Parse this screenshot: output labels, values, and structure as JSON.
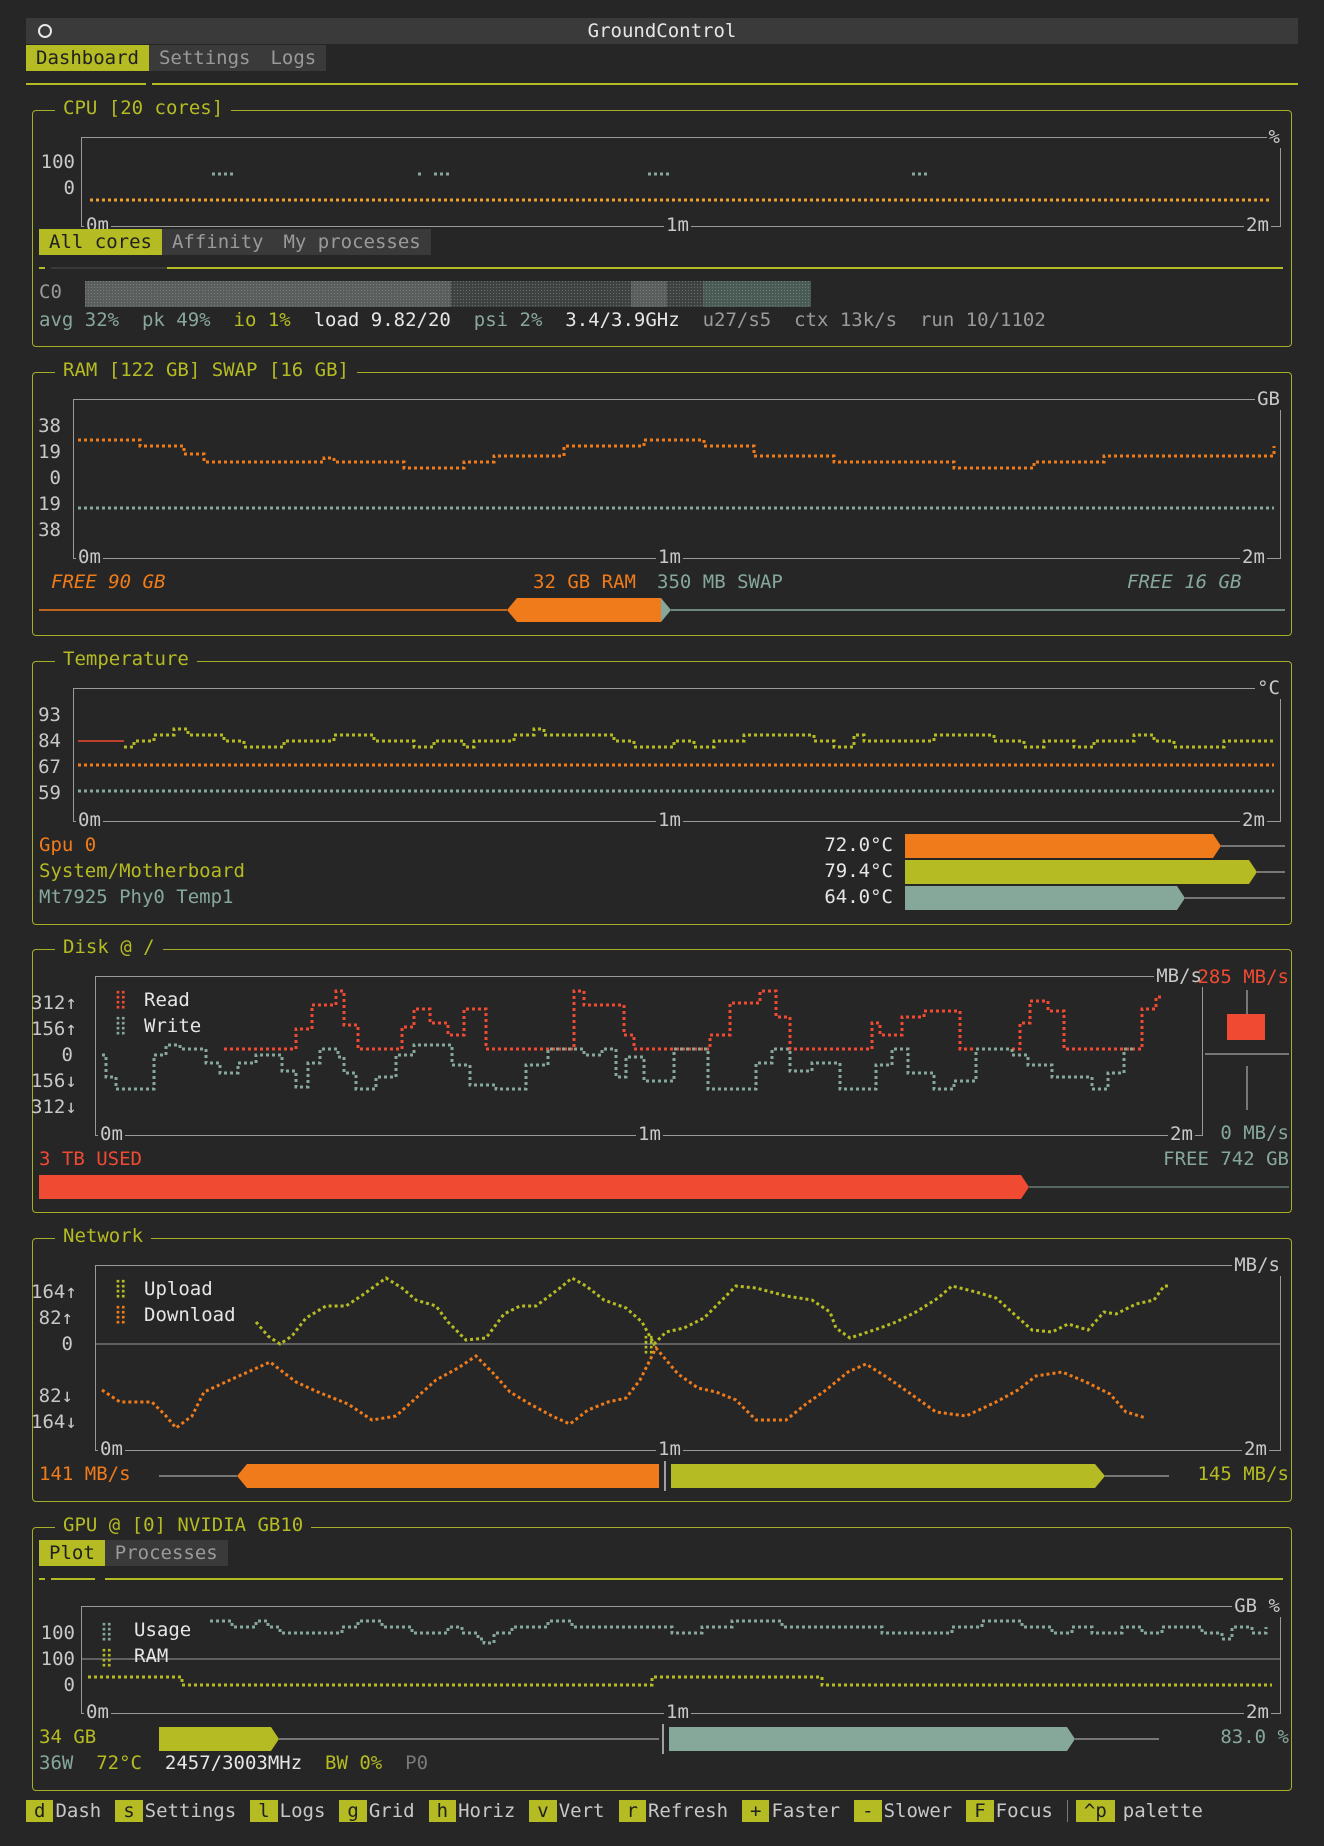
{
  "app": {
    "title": "GroundControl"
  },
  "tabs": [
    "Dashboard",
    "Settings",
    "Logs"
  ],
  "colors": {
    "olive": "#b5bb22",
    "orange": "#f07b1a",
    "red": "#f04a33",
    "teal": "#86a89b",
    "bg": "#262626"
  },
  "x_ticks": [
    "0m",
    "1m",
    "2m"
  ],
  "cpu": {
    "title": "CPU [20 cores]",
    "unit": "%",
    "y_labels": [
      "100",
      "0"
    ],
    "tabs": [
      "All cores",
      "Affinity",
      "My processes"
    ],
    "core_label": "C0",
    "stats": {
      "avg": "avg 32%",
      "pk": "pk 49%",
      "io": "io 1%",
      "load": "load 9.82/20",
      "psi": "psi 2%",
      "freq": "3.4/3.9GHz",
      "us": "u27/s5",
      "ctx": "ctx 13k/s",
      "run": "run 10/1102"
    }
  },
  "ram": {
    "title": "RAM [122 GB] SWAP [16 GB]",
    "unit": "GB",
    "y_labels": [
      "38",
      "19",
      "0",
      "19",
      "38"
    ],
    "free_ram": "FREE 90 GB",
    "used_ram": "32 GB RAM",
    "used_swap": "350 MB SWAP",
    "free_swap": "FREE 16 GB"
  },
  "temperature": {
    "title": "Temperature",
    "unit": "°C",
    "y_labels": [
      "93",
      "84",
      "67",
      "59"
    ],
    "sensors": [
      {
        "name": "Gpu 0",
        "value": "72.0°C",
        "color": "#f07b1a",
        "level": 0.72
      },
      {
        "name": "System/Motherboard",
        "value": "79.4°C",
        "color": "#b5bb22",
        "level": 0.794
      },
      {
        "name": "Mt7925 Phy0 Temp1",
        "value": "64.0°C",
        "color": "#86a89b",
        "level": 0.64
      }
    ]
  },
  "disk": {
    "title": "Disk @ /",
    "unit": "MB/s",
    "y_labels": [
      "312↑",
      "156↑",
      "0",
      "156↓",
      "312↓"
    ],
    "legend": [
      "Read",
      "Write"
    ],
    "read_rate": "285 MB/s",
    "write_rate": "0 MB/s",
    "used": "3 TB USED",
    "free": "FREE 742 GB",
    "used_fraction": 0.8
  },
  "network": {
    "title": "Network",
    "unit": "MB/s",
    "y_labels": [
      "164↑",
      "82↑",
      "0",
      "82↓",
      "164↓"
    ],
    "legend": [
      "Upload",
      "Download"
    ],
    "down_rate": "141 MB/s",
    "up_rate": "145 MB/s"
  },
  "gpu": {
    "title": "GPU @ [0] NVIDIA GB10",
    "tabs": [
      "Plot",
      "Processes"
    ],
    "unit": "GB %",
    "y_labels": [
      "100",
      "100",
      "0"
    ],
    "legend": [
      "Usage",
      "RAM"
    ],
    "mem": "34 GB",
    "util": "83.0 %",
    "stats": {
      "power": "36W",
      "temp": "72°C",
      "clock": "2457/3003MHz",
      "bw": "BW 0%",
      "pstate": "P0"
    }
  },
  "keys": [
    {
      "k": "d",
      "label": "Dash"
    },
    {
      "k": "s",
      "label": "Settings"
    },
    {
      "k": "l",
      "label": "Logs"
    },
    {
      "k": "g",
      "label": "Grid"
    },
    {
      "k": "h",
      "label": "Horiz"
    },
    {
      "k": "v",
      "label": "Vert"
    },
    {
      "k": "r",
      "label": "Refresh"
    },
    {
      "k": "+",
      "label": "Faster"
    },
    {
      "k": "-",
      "label": "Slower"
    },
    {
      "k": "F",
      "label": "Focus"
    },
    {
      "k": "^p",
      "label": "palette"
    }
  ]
}
